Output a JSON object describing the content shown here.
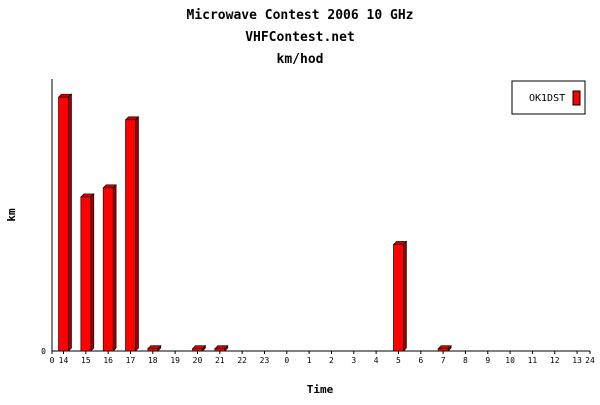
{
  "chart_data": {
    "type": "bar",
    "title": "Microwave Contest 2006 10 GHz",
    "subtitle": "VHFContest.net",
    "subtitle2": "km/hod",
    "xlabel": "Time",
    "ylabel": "km",
    "x_tick_labels": [
      "0",
      "14",
      "15",
      "16",
      "17",
      "18",
      "19",
      "20",
      "21",
      "22",
      "23",
      "0",
      "1",
      "2",
      "3",
      "4",
      "5",
      "6",
      "7",
      "8",
      "9",
      "10",
      "11",
      "12",
      "13",
      "24"
    ],
    "y_tick_labels": [
      "0"
    ],
    "categories": [
      "14",
      "15",
      "16",
      "17",
      "18",
      "19",
      "20",
      "21",
      "22",
      "23",
      "0",
      "1",
      "2",
      "3",
      "4",
      "5",
      "6",
      "7",
      "8",
      "9",
      "10",
      "11",
      "12",
      "13"
    ],
    "series": [
      {
        "name": "OK1DST",
        "color": "#ff0000",
        "values": [
          112,
          68,
          72,
          102,
          1,
          0,
          1,
          1,
          0,
          0,
          0,
          0,
          0,
          0,
          0,
          47,
          0,
          1,
          0,
          0,
          0,
          0,
          0,
          0
        ]
      }
    ],
    "ylim": [
      0,
      120
    ],
    "grid": false,
    "legend_position": "top-right"
  }
}
